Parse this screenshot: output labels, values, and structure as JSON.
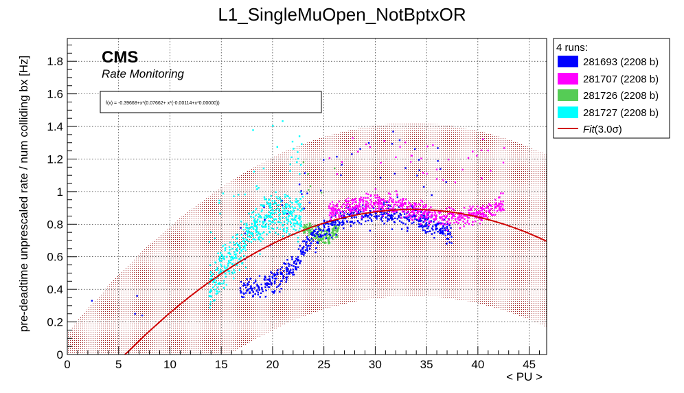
{
  "chart_data": {
    "type": "scatter",
    "title": "L1_SingleMuOpen_NotBptxOR",
    "xlabel": "< PU >",
    "ylabel": "pre-deadtime unprescaled rate / num colliding bx [Hz]",
    "xlim": [
      0,
      46.7
    ],
    "ylim": [
      0,
      1.94
    ],
    "x_ticks": [
      "0",
      "5",
      "10",
      "15",
      "20",
      "25",
      "30",
      "35",
      "40",
      "45"
    ],
    "y_ticks": [
      "0",
      "0.2",
      "0.4",
      "0.6",
      "0.8",
      "1",
      "1.2",
      "1.4",
      "1.6",
      "1.8"
    ],
    "grid": true,
    "legend_position": "top-right, outside plot",
    "legend_header": "4 runs:",
    "fit_label": "Fit(3.0σ)",
    "fit_label_italic": "Fit",
    "fit_label_rest": "(3.0σ)",
    "fit_formula": "f(x) = -0.39668+x*(0.07662+ x*(-0.00114+x*0.00000))",
    "fit_coefficients": [
      -0.39668,
      0.07662,
      -0.00114,
      0.0
    ],
    "band_sigma": 3.0,
    "annotation": {
      "experiment": "CMS",
      "subtitle": "Rate Monitoring"
    },
    "series": [
      {
        "name": "281693 (2208 b)",
        "color": "#0000ff",
        "x_range": [
          16.8,
          37.5
        ],
        "trend_samples": [
          [
            17,
            0.4
          ],
          [
            20,
            0.44
          ],
          [
            22,
            0.55
          ],
          [
            24,
            0.72
          ],
          [
            26,
            0.82
          ],
          [
            28,
            0.86
          ],
          [
            30,
            0.87
          ],
          [
            32,
            0.86
          ],
          [
            34,
            0.84
          ],
          [
            36,
            0.78
          ],
          [
            37,
            0.74
          ]
        ]
      },
      {
        "name": "281707 (2208 b)",
        "color": "#ff00ff",
        "x_range": [
          25.5,
          42.6
        ],
        "trend_samples": [
          [
            26,
            0.88
          ],
          [
            28,
            0.92
          ],
          [
            30,
            0.93
          ],
          [
            32,
            0.92
          ],
          [
            34,
            0.88
          ],
          [
            36,
            0.84
          ],
          [
            38,
            0.84
          ],
          [
            40,
            0.86
          ],
          [
            42,
            0.92
          ]
        ]
      },
      {
        "name": "281726 (2208 b)",
        "color": "#55cc55",
        "x_range": [
          23.0,
          26.5
        ],
        "trend_samples": [
          [
            23,
            0.78
          ],
          [
            24,
            0.74
          ],
          [
            25,
            0.72
          ],
          [
            26,
            0.76
          ]
        ]
      },
      {
        "name": "281727 (2208 b)",
        "color": "#00ffff",
        "x_range": [
          13.8,
          23.0
        ],
        "trend_samples": [
          [
            14,
            0.4
          ],
          [
            15,
            0.52
          ],
          [
            16,
            0.58
          ],
          [
            17,
            0.66
          ],
          [
            18,
            0.78
          ],
          [
            19,
            0.82
          ],
          [
            20,
            0.86
          ],
          [
            21,
            0.86
          ],
          [
            22,
            0.86
          ],
          [
            23,
            0.86
          ]
        ]
      }
    ]
  }
}
